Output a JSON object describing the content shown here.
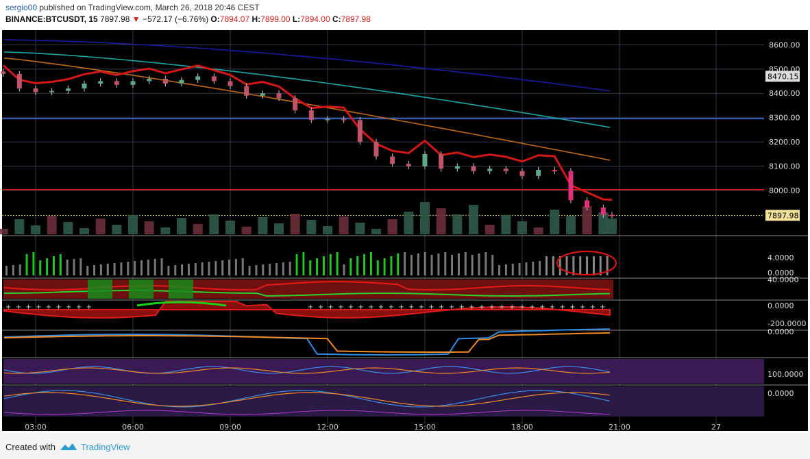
{
  "header": {
    "author": "sergio00",
    "published_text": "published on TradingView.com, March 26, 2018 20:46 CEST",
    "symbol": "BINANCE:BTCUSDT, 15",
    "last": "7897.98",
    "change": "−572.17 (−6.76%)",
    "o_label": "O:",
    "o": "7894.07",
    "h_label": "H:",
    "h": "7899.00",
    "l_label": "L:",
    "l": "7894.00",
    "c_label": "C:",
    "c": "7897.98"
  },
  "footer": {
    "created": "Created with",
    "brand": "TradingView"
  },
  "colors": {
    "bull": "#5fa88a",
    "bear": "#c0556a",
    "panel_bg": "#000000",
    "ma_red": "#d41818",
    "ma_blue": "#1a1aa0",
    "ma_teal": "#1aa7a3",
    "ma_orange": "#c06a1a",
    "macd_blue": "#2f8de6",
    "macd_orange": "#f08a24"
  },
  "chart_data": {
    "type": "candlestick",
    "x_ticks": [
      "03:00",
      "06:00",
      "09:00",
      "12:00",
      "15:00",
      "18:00",
      "21:00",
      "27"
    ],
    "y_ticks": [
      "8600.00",
      "8500.00",
      "8400.00",
      "8300.00",
      "8200.00",
      "8100.00",
      "8000.00"
    ],
    "ylim": [
      7820,
      8660
    ],
    "price_tag_high": "8470.15",
    "price_tag_last": "7897.98",
    "horizontal_levels": [
      8296,
      8004
    ],
    "close_path": [
      {
        "t": "02:00",
        "p": 8480
      },
      {
        "t": "02:30",
        "p": 8420
      },
      {
        "t": "03:00",
        "p": 8405
      },
      {
        "t": "03:30",
        "p": 8410
      },
      {
        "t": "04:00",
        "p": 8420
      },
      {
        "t": "04:30",
        "p": 8440
      },
      {
        "t": "05:00",
        "p": 8450
      },
      {
        "t": "05:30",
        "p": 8435
      },
      {
        "t": "06:00",
        "p": 8450
      },
      {
        "t": "06:30",
        "p": 8460
      },
      {
        "t": "07:00",
        "p": 8440
      },
      {
        "t": "07:30",
        "p": 8455
      },
      {
        "t": "08:00",
        "p": 8470
      },
      {
        "t": "08:30",
        "p": 8450
      },
      {
        "t": "09:00",
        "p": 8430
      },
      {
        "t": "09:30",
        "p": 8390
      },
      {
        "t": "10:00",
        "p": 8400
      },
      {
        "t": "10:30",
        "p": 8380
      },
      {
        "t": "11:00",
        "p": 8330
      },
      {
        "t": "11:30",
        "p": 8290
      },
      {
        "t": "12:00",
        "p": 8295
      },
      {
        "t": "12:30",
        "p": 8290
      },
      {
        "t": "13:00",
        "p": 8200
      },
      {
        "t": "13:30",
        "p": 8140
      },
      {
        "t": "14:00",
        "p": 8110
      },
      {
        "t": "14:30",
        "p": 8100
      },
      {
        "t": "15:00",
        "p": 8150
      },
      {
        "t": "15:30",
        "p": 8090
      },
      {
        "t": "16:00",
        "p": 8100
      },
      {
        "t": "16:30",
        "p": 8080
      },
      {
        "t": "17:00",
        "p": 8090
      },
      {
        "t": "17:30",
        "p": 8080
      },
      {
        "t": "18:00",
        "p": 8060
      },
      {
        "t": "18:30",
        "p": 8085
      },
      {
        "t": "19:00",
        "p": 8080
      },
      {
        "t": "19:30",
        "p": 7960
      },
      {
        "t": "20:00",
        "p": 7930
      },
      {
        "t": "20:30",
        "p": 7900
      },
      {
        "t": "20:46",
        "p": 7898
      }
    ],
    "indicator_scales": {
      "panel1": [
        "4.0000",
        "0.0000"
      ],
      "panel2": [
        "40.0000"
      ],
      "panel3": [
        "0.0000",
        "-200.0000"
      ],
      "panel4": [
        "0.0000"
      ],
      "panel6": [
        "100.0000",
        "0.0000"
      ]
    },
    "annotation": "red ellipse around last histogram bars (19:00–21:00)"
  }
}
